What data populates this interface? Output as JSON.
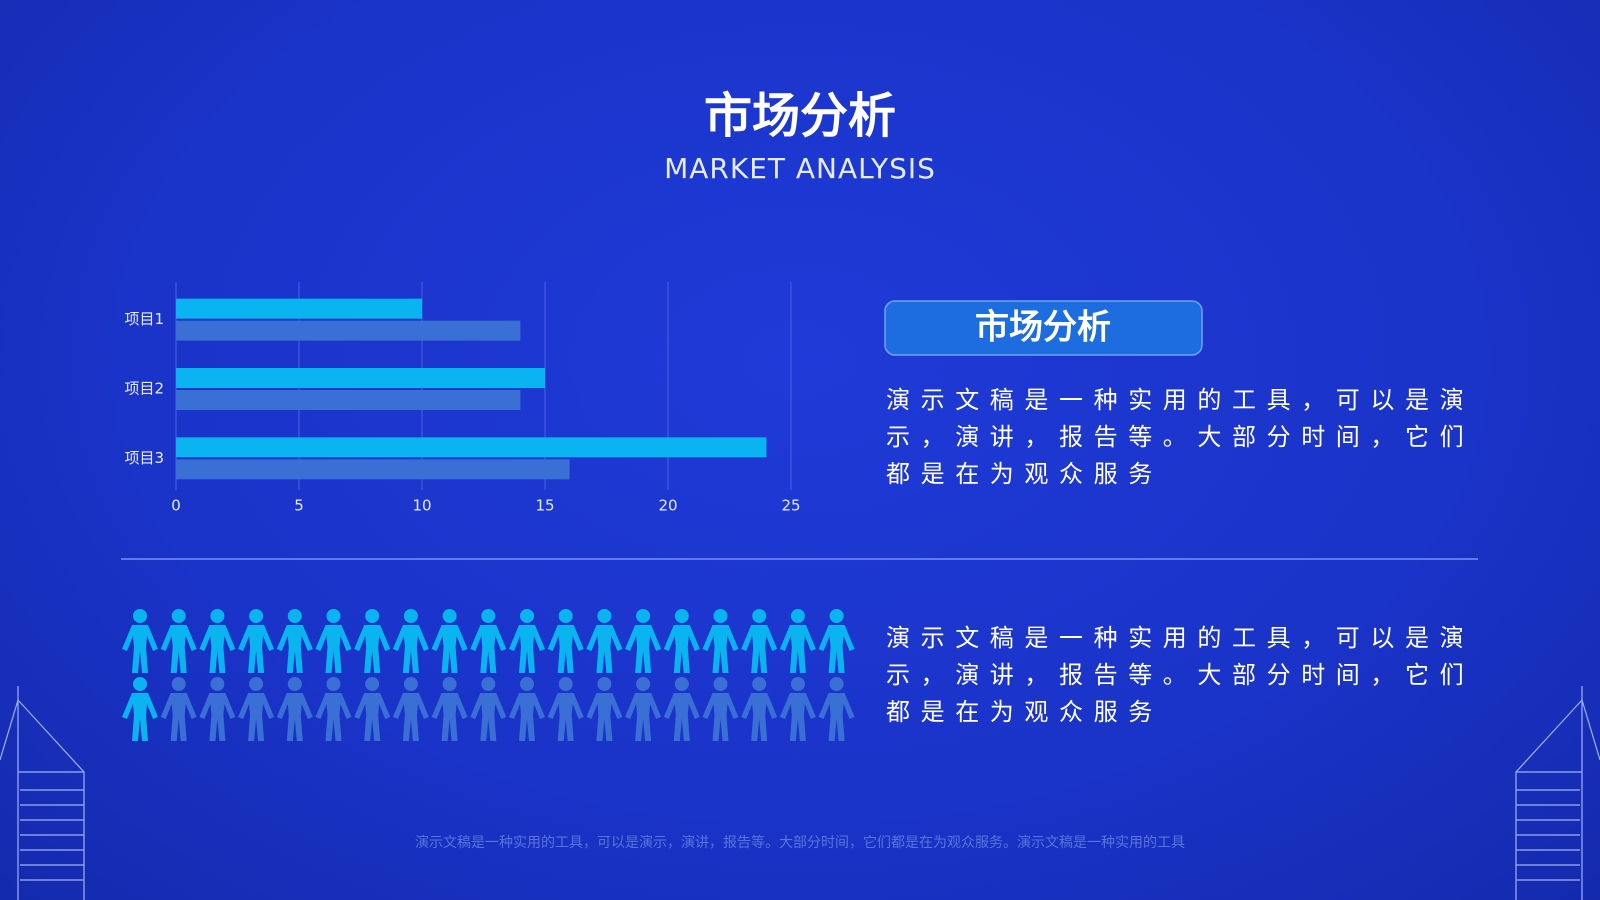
{
  "header": {
    "title": "市场分析",
    "subtitle": "MARKET ANALYSIS"
  },
  "chart_data": {
    "type": "hbar",
    "categories": [
      "项目1",
      "项目2",
      "项目3"
    ],
    "series": [
      {
        "color": "#0ab4f0",
        "values": [
          10,
          15,
          24
        ]
      },
      {
        "color": "#3a6fd6",
        "values": [
          14,
          14,
          16
        ]
      }
    ],
    "xlim": [
      0,
      25
    ],
    "xticks": [
      0,
      5,
      10,
      15,
      20,
      25
    ],
    "grid": true
  },
  "panel": {
    "title": "市场分析",
    "text": "演示文稿是一种实用的工具，可以是演示，演讲，报告等。大部分时间，它们都是在为观众服务"
  },
  "people": {
    "text": "演示文稿是一种实用的工具，可以是演示，演讲，报告等。大部分时间，它们都是在为观众服务"
  },
  "footer": "演示文稿是一种实用的工具，可以是演示，演讲，报告等。大部分时间，它们都是在为观众服务。演示文稿是一种实用的工具"
}
